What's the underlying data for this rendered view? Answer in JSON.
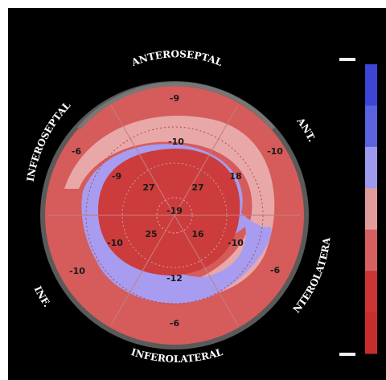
{
  "bullseye": {
    "wall_labels": {
      "anteroseptal": "ANTEROSEPTAL",
      "ant": "ANT.",
      "anterolateral": "ANTEROLATERAL",
      "inferolateral": "INFEROLATERAL",
      "inf": "INF.",
      "inferoseptal": "INFEROSEPTAL"
    },
    "segment_values": {
      "basal": [
        "-9",
        "-10",
        "-6",
        "-6",
        "-10",
        "-6"
      ],
      "mid": [
        "-10",
        "18",
        "-10",
        "-12",
        "-10",
        "-9"
      ],
      "apical": [
        "27",
        "27",
        "16",
        "25"
      ],
      "apex": "-19"
    }
  },
  "colorbar": {
    "colors": [
      "#3c45d6",
      "#5a62e0",
      "#9c99ef",
      "#e39a9a",
      "#d66060",
      "#cc3535",
      "#c82d2d"
    ]
  }
}
